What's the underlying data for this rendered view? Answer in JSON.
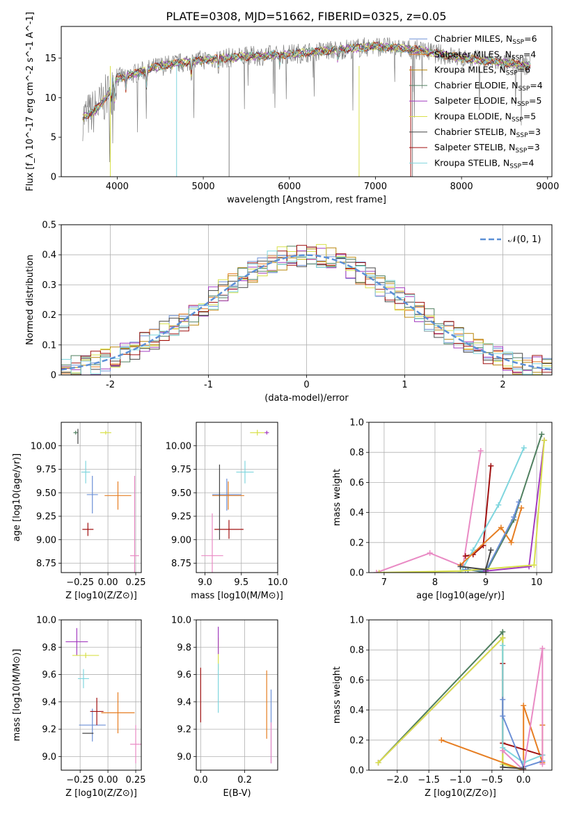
{
  "title": "PLATE=0308, MJD=51662, FIBERID=0325, z=0.05",
  "legend_entries": [
    {
      "name": "Chabrier MILES",
      "nssp": "6",
      "color": "#6b8fd6"
    },
    {
      "name": "Salpeter MILES",
      "nssp": "4",
      "color": "#e67e22"
    },
    {
      "name": "Kroupa MILES",
      "nssp": "6",
      "color": "#b8860b"
    },
    {
      "name": "Chabrier ELODIE",
      "nssp": "4",
      "color": "#4f7f5f"
    },
    {
      "name": "Salpeter ELODIE",
      "nssp": "5",
      "color": "#a23bbf"
    },
    {
      "name": "Kroupa ELODIE",
      "nssp": "5",
      "color": "#d8e04a"
    },
    {
      "name": "Chabrier STELIB",
      "nssp": "3",
      "color": "#444444"
    },
    {
      "name": "Salpeter STELIB",
      "nssp": "3",
      "color": "#a01010"
    },
    {
      "name": "Kroupa STELIB",
      "nssp": "4",
      "color": "#7fd6de"
    }
  ],
  "chart_data": [
    {
      "id": "spectrum",
      "type": "line",
      "xlabel": "wavelength [Angstrom, rest frame]",
      "ylabel": "Flux [f_λ 10^-17 erg cm^-2 s^-1 A^-1]",
      "xlim": [
        3350,
        9050
      ],
      "ylim": [
        0,
        19
      ],
      "xticks": [
        4000,
        5000,
        6000,
        7000,
        8000,
        9000
      ],
      "yticks": [
        0,
        5,
        10,
        15
      ],
      "x_range_data": [
        3600,
        8800
      ],
      "profile": [
        [
          3600,
          7.5
        ],
        [
          3700,
          8
        ],
        [
          3800,
          9
        ],
        [
          3900,
          10.5
        ],
        [
          3950,
          12
        ],
        [
          4000,
          12.5
        ],
        [
          4200,
          13
        ],
        [
          4500,
          14
        ],
        [
          5000,
          14.8
        ],
        [
          5500,
          15.2
        ],
        [
          6000,
          15.5
        ],
        [
          6500,
          16
        ],
        [
          7000,
          16.5
        ],
        [
          7500,
          16
        ],
        [
          8000,
          15
        ],
        [
          8800,
          14
        ]
      ],
      "dips": [
        [
          3934,
          9
        ],
        [
          3969,
          9.5
        ],
        [
          4101,
          11
        ],
        [
          4340,
          11.5
        ],
        [
          4861,
          13
        ],
        [
          5175,
          13.5
        ],
        [
          5890,
          14.5
        ],
        [
          6563,
          14.5
        ]
      ],
      "grid": false
    },
    {
      "id": "residuals",
      "type": "step",
      "xlabel": "(data-model)/error",
      "ylabel": "Normed distribution",
      "xlim": [
        -2.5,
        2.5
      ],
      "ylim": [
        0,
        0.5
      ],
      "xticks": [
        -2,
        -1,
        0,
        1,
        2
      ],
      "yticks": [
        0.0,
        0.1,
        0.2,
        0.3,
        0.4,
        0.5
      ],
      "legend": "𝒩(0, 1)",
      "reference_color": "#5b8fd6",
      "bin_width": 0.1,
      "grid": true,
      "legend_position": "top-right"
    },
    {
      "id": "age_vs_Z",
      "type": "scatter",
      "xlabel": "Z [log10(Z/Z⊙)]",
      "ylabel": "age [log10(age/yr)]",
      "xlim": [
        -0.42,
        0.3
      ],
      "ylim": [
        8.65,
        10.25
      ],
      "xticks": [
        -0.25,
        0.0,
        0.25
      ],
      "xtick_labels": [
        "−0.25",
        "0.00",
        "0.25"
      ],
      "yticks": [
        8.75,
        9.0,
        9.25,
        9.5,
        9.75,
        10.0
      ],
      "ytick_labels": [
        "8.75",
        "9.00",
        "9.25",
        "9.50",
        "9.75",
        "10.00"
      ],
      "grid": true,
      "points": [
        {
          "x": -0.29,
          "y": 10.14,
          "xe": 0.02,
          "ye": 0.02,
          "c": "#4f7f5f"
        },
        {
          "x": -0.02,
          "y": 10.14,
          "xe": 0.05,
          "ye": 0.02,
          "c": "#d8e04a"
        },
        {
          "x": -0.14,
          "y": 9.48,
          "xe": 0.05,
          "ye": 0.2,
          "c": "#6b8fd6"
        },
        {
          "x": -0.2,
          "y": 9.72,
          "xe": 0.04,
          "ye": 0.12,
          "c": "#7fd6de"
        },
        {
          "x": 0.09,
          "y": 9.47,
          "xe": 0.12,
          "ye": 0.15,
          "c": "#e67e22"
        },
        {
          "x": -0.18,
          "y": 9.11,
          "xe": 0.05,
          "ye": 0.07,
          "c": "#a01010"
        },
        {
          "x": 0.24,
          "y": 8.83,
          "xe": 0.04,
          "ye": 0.85,
          "c": "#e98ac4"
        },
        {
          "x": -0.27,
          "y": 10.1,
          "xe": 0.0,
          "ye": 0.08,
          "c": "#444444"
        }
      ]
    },
    {
      "id": "age_vs_mass",
      "type": "scatter",
      "xlabel": "mass [log10(M/M⊙)]",
      "ylabel": "",
      "xlim": [
        8.88,
        10.0
      ],
      "ylim": [
        8.65,
        10.25
      ],
      "xticks": [
        9.0,
        9.5,
        10.0
      ],
      "xtick_labels": [
        "9.0",
        "9.5",
        "10.0"
      ],
      "yticks": [
        8.75,
        9.0,
        9.25,
        9.5,
        9.75,
        10.0
      ],
      "ytick_labels": [
        "8.75",
        "9.00",
        "9.25",
        "9.50",
        "9.75",
        "10.00"
      ],
      "grid": true,
      "points": [
        {
          "x": 9.72,
          "y": 10.14,
          "xe": 0.1,
          "ye": 0.03,
          "c": "#d8e04a"
        },
        {
          "x": 9.85,
          "y": 10.14,
          "xe": 0.03,
          "ye": 0.02,
          "c": "#a23bbf"
        },
        {
          "x": 9.3,
          "y": 9.48,
          "xe": 0.2,
          "ye": 0.17,
          "c": "#6b8fd6"
        },
        {
          "x": 9.55,
          "y": 9.72,
          "xe": 0.12,
          "ye": 0.12,
          "c": "#7fd6de"
        },
        {
          "x": 9.32,
          "y": 9.47,
          "xe": 0.22,
          "ye": 0.15,
          "c": "#e67e22"
        },
        {
          "x": 9.33,
          "y": 9.11,
          "xe": 0.2,
          "ye": 0.1,
          "c": "#a01010"
        },
        {
          "x": 9.1,
          "y": 8.83,
          "xe": 0.15,
          "ye": 0.45,
          "c": "#e98ac4"
        },
        {
          "x": 9.2,
          "y": 9.4,
          "xe": 0.0,
          "ye": 0.4,
          "c": "#444444"
        }
      ]
    },
    {
      "id": "weight_vs_age",
      "type": "line",
      "xlabel": "age [log10(age/yr)]",
      "ylabel": "mass weight",
      "xlim": [
        6.7,
        10.3
      ],
      "ylim": [
        0,
        1.0
      ],
      "xticks": [
        7,
        8,
        9,
        10
      ],
      "xtick_labels": [
        "7",
        "8",
        "9",
        "10"
      ],
      "yticks": [
        0,
        0.2,
        0.4,
        0.6,
        0.8,
        1.0
      ],
      "ytick_labels": [
        "0.0",
        "0.2",
        "0.4",
        "0.6",
        "0.8",
        "1.0"
      ],
      "grid": true,
      "series": [
        {
          "c": "#e98ac4",
          "pts": [
            [
              6.85,
              0.0
            ],
            [
              7.9,
              0.13
            ],
            [
              8.55,
              0.04
            ],
            [
              8.9,
              0.81
            ]
          ]
        },
        {
          "c": "#a01010",
          "pts": [
            [
              8.6,
              0.11
            ],
            [
              8.75,
              0.12
            ],
            [
              8.95,
              0.18
            ],
            [
              9.1,
              0.71
            ]
          ]
        },
        {
          "c": "#7fd6de",
          "pts": [
            [
              8.5,
              0.0
            ],
            [
              8.75,
              0.15
            ],
            [
              9.25,
              0.45
            ],
            [
              9.75,
              0.83
            ]
          ]
        },
        {
          "c": "#4f7f5f",
          "pts": [
            [
              8.65,
              0.02
            ],
            [
              9.0,
              0.0
            ],
            [
              9.55,
              0.35
            ],
            [
              10.1,
              0.92
            ]
          ]
        },
        {
          "c": "#e67e22",
          "pts": [
            [
              8.5,
              0.05
            ],
            [
              9.3,
              0.3
            ],
            [
              9.5,
              0.2
            ],
            [
              9.7,
              0.43
            ]
          ]
        },
        {
          "c": "#6b8fd6",
          "pts": [
            [
              8.6,
              0.02
            ],
            [
              9.0,
              0.01
            ],
            [
              9.55,
              0.37
            ],
            [
              9.65,
              0.47
            ]
          ]
        },
        {
          "c": "#a23bbf",
          "pts": [
            [
              9.0,
              0.01
            ],
            [
              9.85,
              0.04
            ],
            [
              10.15,
              0.88
            ]
          ]
        },
        {
          "c": "#d8e04a",
          "pts": [
            [
              6.9,
              0.0
            ],
            [
              8.5,
              0.01
            ],
            [
              9.95,
              0.05
            ],
            [
              10.15,
              0.88
            ]
          ]
        },
        {
          "c": "#444444",
          "pts": [
            [
              8.5,
              0.04
            ],
            [
              9.0,
              0.02
            ],
            [
              9.1,
              0.15
            ]
          ]
        }
      ]
    },
    {
      "id": "mass_vs_Z",
      "type": "scatter",
      "xlabel": "Z [log10(Z/Z⊙)]",
      "ylabel": "mass [log10(M/M⊙)]",
      "xlim": [
        -0.42,
        0.3
      ],
      "ylim": [
        8.9,
        10.0
      ],
      "xticks": [
        -0.25,
        0.0,
        0.25
      ],
      "xtick_labels": [
        "−0.25",
        "0.00",
        "0.25"
      ],
      "yticks": [
        9.0,
        9.2,
        9.4,
        9.6,
        9.8,
        10.0
      ],
      "ytick_labels": [
        "9.0",
        "9.2",
        "9.4",
        "9.6",
        "9.8",
        "10.0"
      ],
      "grid": true,
      "points": [
        {
          "x": -0.28,
          "y": 9.84,
          "xe": 0.1,
          "ye": 0.1,
          "c": "#a23bbf"
        },
        {
          "x": -0.2,
          "y": 9.74,
          "xe": 0.12,
          "ye": 0.02,
          "c": "#d8e04a"
        },
        {
          "x": -0.22,
          "y": 9.57,
          "xe": 0.05,
          "ye": 0.07,
          "c": "#7fd6de"
        },
        {
          "x": -0.14,
          "y": 9.23,
          "xe": 0.12,
          "ye": 0.12,
          "c": "#6b8fd6"
        },
        {
          "x": -0.1,
          "y": 9.33,
          "xe": 0.06,
          "ye": 0.1,
          "c": "#a01010"
        },
        {
          "x": 0.09,
          "y": 9.32,
          "xe": 0.15,
          "ye": 0.15,
          "c": "#e67e22"
        },
        {
          "x": 0.25,
          "y": 9.09,
          "xe": 0.05,
          "ye": 0.14,
          "c": "#e98ac4"
        },
        {
          "x": -0.18,
          "y": 9.17,
          "xe": 0.05,
          "ye": 0.0,
          "c": "#444444"
        }
      ]
    },
    {
      "id": "mass_vs_ebv",
      "type": "scatter",
      "xlabel": "E(B-V)",
      "ylabel": "",
      "xlim": [
        -0.02,
        0.35
      ],
      "ylim": [
        8.9,
        10.0
      ],
      "xticks": [
        0.0,
        0.2
      ],
      "xtick_labels": [
        "0.0",
        "0.2"
      ],
      "yticks": [
        9.0,
        9.2,
        9.4,
        9.6,
        9.8,
        10.0
      ],
      "ytick_labels": [
        "9.0",
        "9.2",
        "9.4",
        "9.6",
        "9.8",
        "10.0"
      ],
      "grid": true,
      "points": [
        {
          "x": 0.0,
          "y": 9.45,
          "xe": 0.0,
          "ye": 0.2,
          "c": "#a01010"
        },
        {
          "x": 0.08,
          "y": 9.75,
          "xe": 0.0,
          "ye": 0.12,
          "c": "#d8e04a"
        },
        {
          "x": 0.08,
          "y": 9.85,
          "xe": 0.0,
          "ye": 0.1,
          "c": "#a23bbf"
        },
        {
          "x": 0.08,
          "y": 9.5,
          "xe": 0.0,
          "ye": 0.18,
          "c": "#7fd6de"
        },
        {
          "x": 0.3,
          "y": 9.38,
          "xe": 0.0,
          "ye": 0.25,
          "c": "#e67e22"
        },
        {
          "x": 0.32,
          "y": 9.22,
          "xe": 0.0,
          "ye": 0.27,
          "c": "#6b8fd6"
        },
        {
          "x": 0.32,
          "y": 9.1,
          "xe": 0.0,
          "ye": 0.15,
          "c": "#e98ac4"
        }
      ]
    },
    {
      "id": "weight_vs_Z",
      "type": "line",
      "xlabel": "Z [log10(Z/Z⊙)]",
      "ylabel": "mass weight",
      "xlim": [
        -2.45,
        0.45
      ],
      "ylim": [
        0,
        1.0
      ],
      "xticks": [
        -2.0,
        -1.5,
        -1.0,
        -0.5,
        0.0
      ],
      "xtick_labels": [
        "−2.0",
        "−1.5",
        "−1.0",
        "−0.5",
        "0.0"
      ],
      "yticks": [
        0,
        0.2,
        0.4,
        0.6,
        0.8,
        1.0
      ],
      "ytick_labels": [
        "0.0",
        "0.2",
        "0.4",
        "0.6",
        "0.8",
        "1.0"
      ],
      "grid": true,
      "series": [
        {
          "c": "#4f7f5f",
          "pts": [
            [
              -2.3,
              0.05
            ],
            [
              -0.33,
              0.92
            ],
            [
              -0.33,
              0.02
            ]
          ]
        },
        {
          "c": "#a23bbf",
          "pts": [
            [
              -2.3,
              0.05
            ],
            [
              -0.33,
              0.88
            ]
          ]
        },
        {
          "c": "#d8e04a",
          "pts": [
            [
              -2.3,
              0.05
            ],
            [
              -0.33,
              0.88
            ],
            [
              -0.33,
              0.04
            ],
            [
              0.0,
              0.0
            ]
          ]
        },
        {
          "c": "#e67e22",
          "pts": [
            [
              -1.3,
              0.2
            ],
            [
              0.0,
              0.0
            ],
            [
              0.0,
              0.43
            ],
            [
              0.3,
              0.05
            ],
            [
              0.3,
              0.3
            ]
          ]
        },
        {
          "c": "#a01010",
          "pts": [
            [
              -0.33,
              0.71
            ],
            [
              -0.33,
              0.18
            ],
            [
              0.3,
              0.1
            ]
          ]
        },
        {
          "c": "#7fd6de",
          "pts": [
            [
              -0.33,
              0.83
            ],
            [
              -0.33,
              0.15
            ],
            [
              0.0,
              0.05
            ],
            [
              0.3,
              0.1
            ]
          ]
        },
        {
          "c": "#6b8fd6",
          "pts": [
            [
              -0.33,
              0.47
            ],
            [
              -0.33,
              0.36
            ],
            [
              0.0,
              0.02
            ],
            [
              0.3,
              0.06
            ]
          ]
        },
        {
          "c": "#e98ac4",
          "pts": [
            [
              -0.33,
              0.13
            ],
            [
              0.0,
              0.0
            ],
            [
              0.3,
              0.81
            ],
            [
              0.3,
              0.04
            ]
          ]
        },
        {
          "c": "#444444",
          "pts": [
            [
              -0.33,
              0.02
            ],
            [
              0.0,
              0.01
            ]
          ]
        }
      ]
    }
  ]
}
